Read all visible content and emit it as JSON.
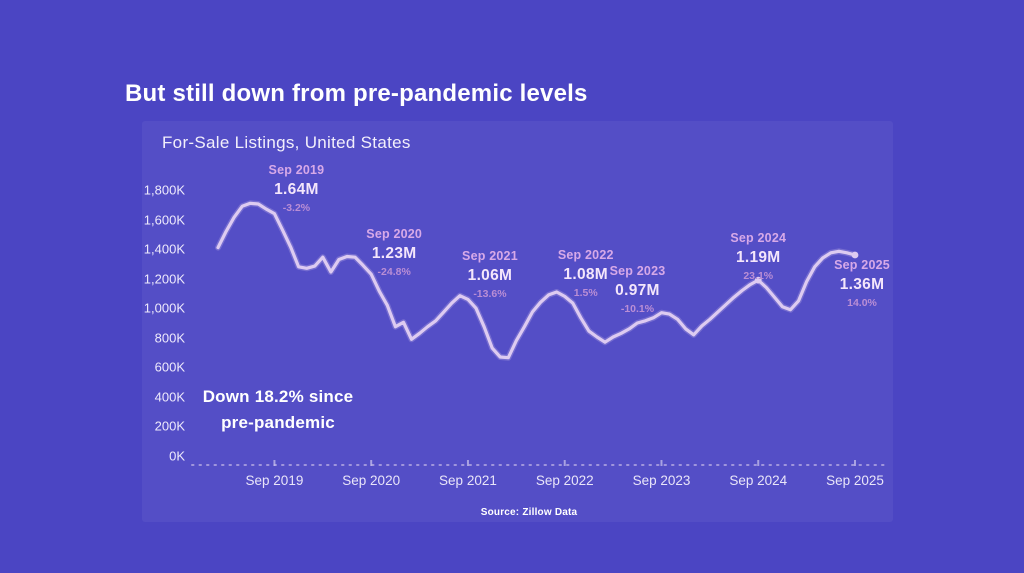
{
  "page": {
    "title": "But still down from pre-pandemic levels",
    "background_color": "#4b45c3"
  },
  "chart": {
    "title": "For-Sale Listings, United States",
    "note_line1": "Down 18.2% since",
    "note_line2": "pre-pandemic",
    "source": "Source: Zillow Data",
    "line_color": "#ddcbf1",
    "axis_color": "#b3a9e2"
  },
  "chart_data": {
    "type": "line",
    "title": "For-Sale Listings, United States",
    "unit": "thousands of listings (K)",
    "frequency": "monthly",
    "x_start": "Feb 2019",
    "x_end": "Sep 2025",
    "ylim": [
      0,
      1800
    ],
    "grid": false,
    "legend": "none",
    "y_tick_labels": [
      "1,800K",
      "1,600K",
      "1,400K",
      "1,200K",
      "1,000K",
      "800K",
      "600K",
      "400K",
      "200K",
      "0K"
    ],
    "y_tick_values": [
      1800,
      1600,
      1400,
      1200,
      1000,
      800,
      600,
      400,
      200,
      0
    ],
    "x_tick_labels": [
      "Sep 2019",
      "Sep 2020",
      "Sep 2021",
      "Sep 2022",
      "Sep 2023",
      "Sep 2024",
      "Sep 2025"
    ],
    "x_tick_month_indices": [
      7,
      19,
      31,
      43,
      55,
      67,
      79
    ],
    "series": [
      {
        "name": "For-Sale Listings",
        "values": [
          1410,
          1520,
          1615,
          1690,
          1710,
          1705,
          1670,
          1640,
          1530,
          1415,
          1280,
          1270,
          1285,
          1345,
          1245,
          1330,
          1350,
          1345,
          1290,
          1230,
          1115,
          1020,
          875,
          905,
          790,
          830,
          875,
          915,
          975,
          1035,
          1085,
          1060,
          1000,
          875,
          730,
          670,
          665,
          780,
          875,
          975,
          1040,
          1090,
          1110,
          1080,
          1035,
          935,
          845,
          805,
          770,
          805,
          830,
          860,
          900,
          915,
          935,
          970,
          960,
          925,
          860,
          820,
          880,
          925,
          975,
          1025,
          1075,
          1120,
          1160,
          1190,
          1140,
          1075,
          1010,
          990,
          1050,
          1180,
          1280,
          1340,
          1375,
          1385,
          1375,
          1360
        ]
      }
    ],
    "annotations": [
      {
        "label": "Sep 2019",
        "value": "1.64M",
        "pct_change": "-3.2%",
        "month_index": 7
      },
      {
        "label": "Sep 2020",
        "value": "1.23M",
        "pct_change": "-24.8%",
        "month_index": 19
      },
      {
        "label": "Sep 2021",
        "value": "1.06M",
        "pct_change": "-13.6%",
        "month_index": 31
      },
      {
        "label": "Sep 2022",
        "value": "1.08M",
        "pct_change": "1.5%",
        "month_index": 43
      },
      {
        "label": "Sep 2023",
        "value": "0.97M",
        "pct_change": "-10.1%",
        "month_index": 55
      },
      {
        "label": "Sep 2024",
        "value": "1.19M",
        "pct_change": "23.1%",
        "month_index": 67
      },
      {
        "label": "Sep 2025",
        "value": "1.36M",
        "pct_change": "14.0%",
        "month_index": 79
      }
    ],
    "callout_text": "Down 18.2% since pre-pandemic",
    "source": "Source: Zillow Data"
  }
}
